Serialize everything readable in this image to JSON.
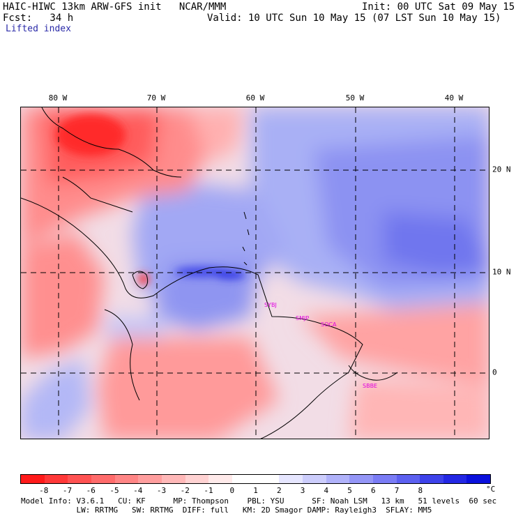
{
  "header": {
    "model_line": "HAIC-HIWC 13km ARW-GFS init   NCAR/MMM",
    "init_line": "Init: 00 UTC Sat 09 May 15",
    "fcst_line": "Fcst:   34 h",
    "valid_line": "Valid: 10 UTC Sun 10 May 15 (07 LST Sun 10 May 15)",
    "field_name": "Lifted index"
  },
  "map": {
    "lon_labels": [
      "80 W",
      "70 W",
      "60 W",
      "50 W",
      "40 W"
    ],
    "lat_labels": [
      "20 N",
      "10 N",
      "0"
    ],
    "stations": [
      "SYBJ",
      "SMJP",
      "SOCA",
      "SBBE"
    ]
  },
  "colorbar": {
    "unit": "°C",
    "ticks": [
      "-8",
      "-7",
      "-6",
      "-5",
      "-4",
      "-3",
      "-2",
      "-1",
      "0",
      "1",
      "2",
      "3",
      "4",
      "5",
      "6",
      "7",
      "8"
    ],
    "colors": [
      "#ff1a1a",
      "#ff3838",
      "#ff5252",
      "#ff6b6b",
      "#ff8585",
      "#ff9e9e",
      "#ffb8b8",
      "#ffd2d2",
      "#ffeaea",
      "#ffffff",
      "#ffffff",
      "#e6e6ff",
      "#cccdfc",
      "#b0b2fa",
      "#9496f7",
      "#7a7cf5",
      "#5c60f0",
      "#3d42ea",
      "#2327e4",
      "#0a10dc"
    ]
  },
  "info": {
    "line1": "Model Info: V3.6.1   CU: KF      MP: Thompson    PBL: YSU      SF: Noah LSM   13 km   51 levels  60 sec",
    "line2": "            LW: RRTMG   SW: RRTMG  DIFF: full   KM: 2D Smagor DAMP: Rayleigh3  SFLAY: MM5"
  }
}
